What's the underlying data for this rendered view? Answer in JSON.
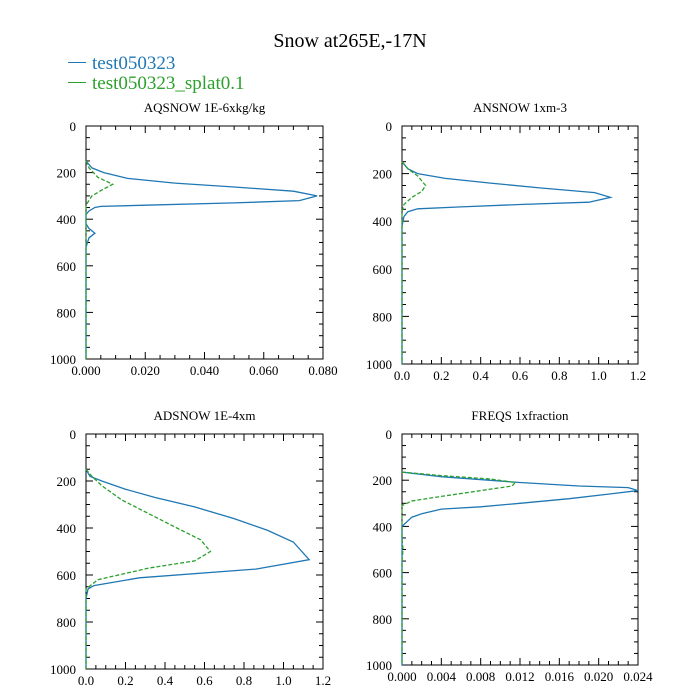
{
  "figure": {
    "title": "Snow at265E,-17N"
  },
  "legend": [
    {
      "name": "test050323",
      "color": "#1f77b4",
      "dash": "solid"
    },
    {
      "name": "test050323_splat0.1",
      "color": "#2ca02c",
      "dash": "dashed"
    }
  ],
  "chart_data": [
    {
      "type": "line",
      "title": "AQSNOW  1E-6xkg/kg",
      "xlim": [
        0,
        0.08
      ],
      "ylim": [
        1000,
        0
      ],
      "xticks": [
        0.0,
        0.02,
        0.04,
        0.06,
        0.08
      ],
      "xtick_labels": [
        "0.000",
        "0.020",
        "0.040",
        "0.060",
        "0.080"
      ],
      "yticks": [
        0,
        200,
        400,
        600,
        800,
        1000
      ],
      "ytick_labels": [
        "0",
        "200",
        "400",
        "600",
        "800",
        "1000"
      ],
      "series": [
        {
          "name": "test050323",
          "x": [
            0,
            0.002,
            0.006,
            0.014,
            0.03,
            0.05,
            0.07,
            0.078,
            0.072,
            0.05,
            0.02,
            0.005,
            0.003,
            0.001,
            0,
            0,
            0.001,
            0.003,
            0.001,
            0,
            0
          ],
          "y": [
            150,
            180,
            200,
            225,
            245,
            262,
            280,
            300,
            320,
            330,
            340,
            345,
            350,
            365,
            380,
            420,
            440,
            460,
            480,
            520,
            1000
          ]
        },
        {
          "name": "test050323_splat0.1",
          "x": [
            0,
            0.001,
            0.004,
            0.009,
            0.006,
            0.002,
            0,
            0
          ],
          "y": [
            150,
            180,
            220,
            250,
            270,
            300,
            340,
            1000
          ]
        }
      ]
    },
    {
      "type": "line",
      "title": "ANSNOW  1xm-3",
      "xlim": [
        0,
        1.2
      ],
      "ylim": [
        1000,
        0
      ],
      "xticks": [
        0,
        0.2,
        0.4,
        0.6,
        0.8,
        1.0,
        1.2
      ],
      "xtick_labels": [
        "0.0",
        "0.2",
        "0.4",
        "0.6",
        "0.8",
        "1.0",
        "1.2"
      ],
      "yticks": [
        0,
        200,
        400,
        600,
        800,
        1000
      ],
      "ytick_labels": [
        "0",
        "200",
        "400",
        "600",
        "800",
        "1000"
      ],
      "series": [
        {
          "name": "test050323",
          "x": [
            0,
            0.03,
            0.08,
            0.22,
            0.45,
            0.7,
            0.98,
            1.06,
            0.95,
            0.6,
            0.3,
            0.08,
            0.03,
            0.01,
            0,
            0
          ],
          "y": [
            150,
            180,
            200,
            220,
            240,
            260,
            280,
            300,
            320,
            330,
            340,
            348,
            360,
            380,
            420,
            1000
          ]
        },
        {
          "name": "test050323_splat0.1",
          "x": [
            0,
            0.03,
            0.08,
            0.12,
            0.1,
            0.05,
            0.01,
            0,
            0
          ],
          "y": [
            150,
            180,
            210,
            250,
            275,
            300,
            330,
            360,
            1000
          ]
        }
      ]
    },
    {
      "type": "line",
      "title": "ADSNOW  1E-4xm",
      "xlim": [
        0,
        1.2
      ],
      "ylim": [
        1000,
        0
      ],
      "xticks": [
        0,
        0.2,
        0.4,
        0.6,
        0.8,
        1.0,
        1.2
      ],
      "xtick_labels": [
        "0.0",
        "0.2",
        "0.4",
        "0.6",
        "0.8",
        "1.0",
        "1.2"
      ],
      "yticks": [
        0,
        200,
        400,
        600,
        800,
        1000
      ],
      "ytick_labels": [
        "0",
        "200",
        "400",
        "600",
        "800",
        "1000"
      ],
      "series": [
        {
          "name": "test050323",
          "x": [
            0,
            0.02,
            0.08,
            0.2,
            0.35,
            0.55,
            0.75,
            0.92,
            1.05,
            1.13,
            0.86,
            0.27,
            0.04,
            0.01,
            0,
            0
          ],
          "y": [
            150,
            180,
            200,
            235,
            270,
            310,
            360,
            410,
            460,
            535,
            575,
            612,
            645,
            660,
            700,
            1000
          ]
        },
        {
          "name": "test050323_splat0.1",
          "x": [
            0,
            0.03,
            0.08,
            0.18,
            0.32,
            0.46,
            0.58,
            0.63,
            0.55,
            0.32,
            0.06,
            0,
            0
          ],
          "y": [
            150,
            180,
            220,
            280,
            340,
            400,
            450,
            500,
            540,
            570,
            620,
            660,
            1000
          ]
        }
      ]
    },
    {
      "type": "line",
      "title": "FREQS  1xfraction",
      "xlim": [
        0,
        0.024
      ],
      "ylim": [
        1000,
        0
      ],
      "xticks": [
        0,
        0.004,
        0.008,
        0.012,
        0.016,
        0.02,
        0.024
      ],
      "xtick_labels": [
        "0.000",
        "0.004",
        "0.008",
        "0.012",
        "0.016",
        "0.020",
        "0.024"
      ],
      "yticks": [
        0,
        200,
        400,
        600,
        800,
        1000
      ],
      "ytick_labels": [
        "0",
        "200",
        "400",
        "600",
        "800",
        "1000"
      ],
      "series": [
        {
          "name": "test050323",
          "x": [
            0,
            0.004,
            0.012,
            0.018,
            0.023,
            0.024,
            0.021,
            0.017,
            0.012,
            0.008,
            0.004,
            0.002,
            0.001,
            0,
            0
          ],
          "y": [
            165,
            185,
            210,
            225,
            232,
            245,
            260,
            280,
            300,
            315,
            325,
            345,
            360,
            400,
            1000
          ]
        },
        {
          "name": "test050323_splat0.1",
          "x": [
            0,
            0.004,
            0.009,
            0.0115,
            0.0112,
            0.008,
            0.004,
            0.001,
            0,
            0,
            0.0001,
            0,
            0
          ],
          "y": [
            165,
            180,
            195,
            210,
            225,
            245,
            270,
            290,
            310,
            450,
            500,
            550,
            1000
          ]
        }
      ]
    }
  ]
}
